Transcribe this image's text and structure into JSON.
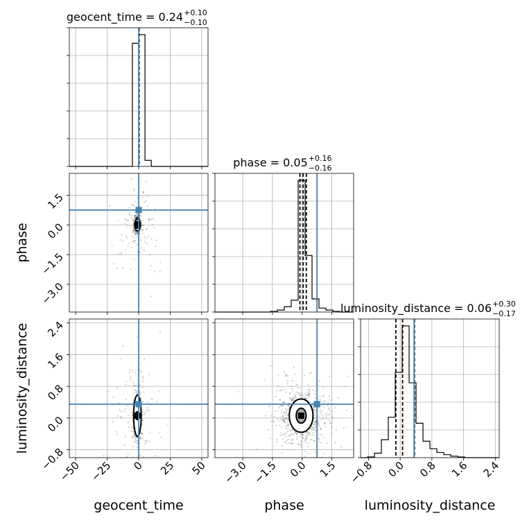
{
  "chart_data": {
    "type": "corner",
    "parameters": [
      "geocent_time",
      "phase",
      "luminosity_distance"
    ],
    "axis_labels": {
      "geocent_time": "geocent_time",
      "phase": "phase",
      "luminosity_distance": "luminosity_distance"
    },
    "ranges": {
      "geocent_time": [
        -55,
        55
      ],
      "phase": [
        -4.4,
        2.6
      ],
      "luminosity_distance": [
        -1.0,
        2.5
      ]
    },
    "ticks": {
      "geocent_time": [
        -50,
        -25,
        0,
        25,
        50
      ],
      "phase": [
        -3.0,
        -1.5,
        0.0,
        1.5
      ],
      "luminosity_distance": [
        -0.8,
        0.0,
        0.8,
        1.6,
        2.4
      ]
    },
    "tick_labels": {
      "geocent_time": [
        "−50",
        "−25",
        "0",
        "25",
        "50"
      ],
      "phase": [
        "−3.0",
        "−1.5",
        "0.0",
        "1.5"
      ],
      "luminosity_distance": [
        "−0.8",
        "0.0",
        "0.8",
        "1.6",
        "2.4"
      ]
    },
    "titles": {
      "geocent_time": {
        "text": "geocent_time = 0.24",
        "plus": "+0.10",
        "minus": "−0.10"
      },
      "phase": {
        "text": "phase = 0.05",
        "plus": "+0.16",
        "minus": "−0.16"
      },
      "luminosity_distance": {
        "text": "luminosity_distance = 0.06",
        "plus": "+0.30",
        "minus": "−0.17"
      }
    },
    "truths": {
      "geocent_time": 0.0,
      "phase": 0.75,
      "luminosity_distance": 0.35
    },
    "quantiles": {
      "geocent_time": [
        0.14,
        0.24,
        0.34
      ],
      "phase": [
        -0.11,
        0.05,
        0.21
      ],
      "luminosity_distance": [
        -0.11,
        0.06,
        0.36
      ]
    },
    "histograms": {
      "geocent_time": {
        "edges": [
          -55,
          -50,
          -45,
          -40,
          -35,
          -30,
          -25,
          -20,
          -15,
          -10,
          -5,
          0,
          5,
          10,
          15,
          20,
          25,
          30,
          35,
          40,
          45,
          50,
          55
        ],
        "counts": [
          0,
          0,
          0,
          0,
          0,
          0,
          0,
          0,
          0,
          0,
          0.935,
          1.0,
          0.046,
          0,
          0,
          0,
          0,
          0,
          0,
          0,
          0,
          0
        ]
      },
      "phase": {
        "edges": [
          -4.4,
          -4.05,
          -3.7,
          -3.35,
          -3.0,
          -2.65,
          -2.3,
          -1.95,
          -1.6,
          -1.25,
          -0.9,
          -0.55,
          -0.2,
          0.15,
          0.5,
          0.85,
          1.2,
          1.55,
          1.9,
          2.25,
          2.6
        ],
        "counts": [
          0,
          0,
          0,
          0,
          0,
          0,
          0,
          0,
          0.005,
          0.015,
          0.04,
          0.09,
          1.0,
          0.43,
          0.1,
          0.03,
          0.015,
          0.005,
          0,
          0
        ]
      },
      "luminosity_distance": {
        "edges": [
          -1.0,
          -0.825,
          -0.65,
          -0.475,
          -0.3,
          -0.125,
          0.05,
          0.225,
          0.4,
          0.575,
          0.75,
          0.925,
          1.1,
          1.275,
          1.45,
          1.625,
          1.8,
          1.975,
          2.15,
          2.325,
          2.5
        ],
        "counts": [
          0,
          0.005,
          0.03,
          0.12,
          0.27,
          0.57,
          0.88,
          0.5,
          0.23,
          0.11,
          0.06,
          0.035,
          0.02,
          0.01,
          0.005,
          0,
          0,
          0,
          0,
          0
        ]
      }
    },
    "pairs": [
      {
        "x": "geocent_time",
        "y": "phase",
        "center": [
          -1.0,
          0.0
        ],
        "spread": [
          1.2,
          0.22
        ],
        "outliers_spread": [
          8,
          1.2
        ],
        "contour_1sigma": [
          1.1,
          0.17
        ],
        "contour_2sigma": [
          2.0,
          0.3
        ]
      },
      {
        "x": "geocent_time",
        "y": "luminosity_distance",
        "center": [
          -1.0,
          0.06
        ],
        "spread": [
          1.5,
          0.3
        ],
        "outliers_spread": [
          10,
          0.9
        ],
        "contour_1sigma": [
          1.6,
          0.1
        ],
        "contour_2sigma": [
          3.0,
          0.52
        ]
      },
      {
        "x": "phase",
        "y": "luminosity_distance",
        "center": [
          -0.05,
          0.06
        ],
        "spread": [
          0.6,
          0.34
        ],
        "outliers_spread": [
          1.2,
          0.6
        ],
        "contour_1sigma": [
          0.25,
          0.19
        ],
        "contour_2sigma": [
          0.6,
          0.42
        ]
      }
    ],
    "grid": true,
    "quantile_levels": [
      0.16,
      0.5,
      0.84
    ]
  }
}
